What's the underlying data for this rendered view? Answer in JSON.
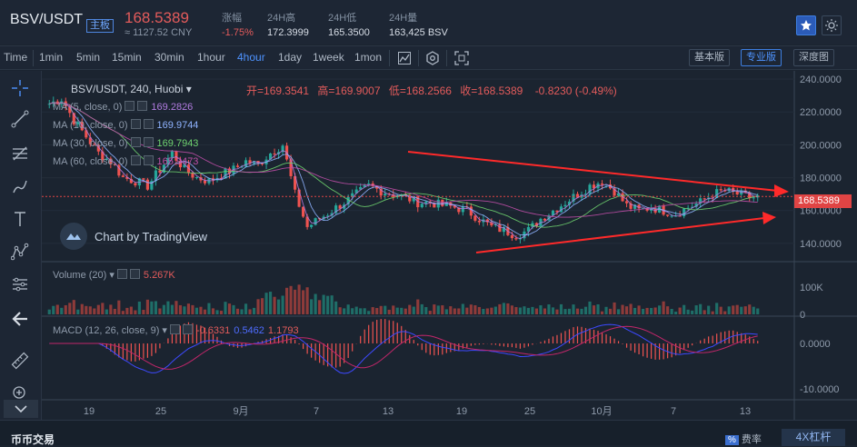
{
  "header": {
    "pair": "BSV/USDT",
    "board_tag": "主板",
    "last_price": "168.5389",
    "cny_price": "≈ 1127.52 CNY",
    "stats": [
      {
        "label": "涨幅",
        "value": "-1.75%"
      },
      {
        "label": "24H高",
        "value": "172.3999"
      },
      {
        "label": "24H低",
        "value": "165.3500"
      },
      {
        "label": "24H量",
        "value": "163,425 BSV"
      }
    ],
    "star_icon": "star-icon",
    "theme_icon": "sun-icon"
  },
  "toolbar": {
    "time_label": "Time",
    "intervals": [
      "1min",
      "5min",
      "15min",
      "30min",
      "1hour",
      "4hour",
      "1day",
      "1week",
      "1mon"
    ],
    "active_interval": "4hour",
    "icons": [
      "indicator-icon",
      "settings-icon",
      "fullscreen-icon"
    ],
    "views": [
      "基本版",
      "专业版",
      "深度图"
    ],
    "active_view": "专业版"
  },
  "left_tools": [
    "crosshair-icon",
    "trend-line-icon",
    "fib-icon",
    "brush-icon",
    "text-icon",
    "pattern-icon",
    "measure-icon",
    "back-arrow-icon",
    "ruler-icon",
    "zoom-in-icon",
    "collapse-icon"
  ],
  "chart": {
    "symbol_line": "BSV/USDT, 240, Huobi",
    "ohlc": {
      "open_label": "开=",
      "open": "169.3541",
      "high_label": "高=",
      "high": "169.9007",
      "low_label": "低=",
      "low": "168.2566",
      "close_label": "收=",
      "close": "168.5389",
      "change": "-0.8230 (-0.49%)"
    },
    "ma": [
      {
        "label": "MA (5, close, 0)",
        "value": "169.2826",
        "color": "#b17ce0"
      },
      {
        "label": "MA (10, close, 0)",
        "value": "169.9744",
        "color": "#8fb3ff"
      },
      {
        "label": "MA (30, close, 0)",
        "value": "169.7943",
        "color": "#6fd36f"
      },
      {
        "label": "MA (60, close, 0)",
        "value": "165.9473",
        "color": "#c04fa8"
      }
    ],
    "watermark": "Chart by TradingView",
    "price_tag": "168.5389",
    "y_ticks": [
      "240.0000",
      "220.0000",
      "200.0000",
      "180.0000",
      "160.0000",
      "140.0000"
    ],
    "volume_label": "Volume (20)",
    "volume_value": "5.267K",
    "volume_ticks": [
      "100K",
      "0"
    ],
    "macd_label": "MACD (12, 26, close, 9)",
    "macd_values": [
      "-0.6331",
      "0.5462",
      "1.1793"
    ],
    "macd_ticks": [
      "0.0000",
      "-10.0000"
    ],
    "x_ticks": [
      "19",
      "25",
      "9月",
      "7",
      "13",
      "19",
      "25",
      "10月",
      "7",
      "13"
    ]
  },
  "colors": {
    "up": "#26a69a",
    "down": "#ef5350",
    "accent": "#4e93ff",
    "trend": "#ff2a2a"
  },
  "chart_data": {
    "type": "candlestick",
    "title": "BSV/USDT, 240, Huobi",
    "ylim": [
      130,
      245
    ],
    "x_labels": [
      "19",
      "25",
      "9月",
      "7",
      "13",
      "19",
      "25",
      "10月",
      "7",
      "13"
    ],
    "close_approx": [
      225,
      228,
      215,
      205,
      195,
      190,
      180,
      178,
      175,
      185,
      195,
      185,
      180,
      178,
      182,
      185,
      190,
      188,
      195,
      200,
      170,
      150,
      155,
      160,
      165,
      170,
      175,
      172,
      170,
      168,
      165,
      165,
      163,
      162,
      160,
      155,
      150,
      148,
      145,
      148,
      155,
      160,
      165,
      170,
      175,
      178,
      172,
      163,
      160,
      162,
      160,
      158,
      162,
      165,
      170,
      172,
      170,
      168
    ]
  },
  "bottom": {
    "title": "币币交易",
    "fee_box": "%",
    "fee_label": "费率",
    "leverage": "4X杠杆"
  }
}
